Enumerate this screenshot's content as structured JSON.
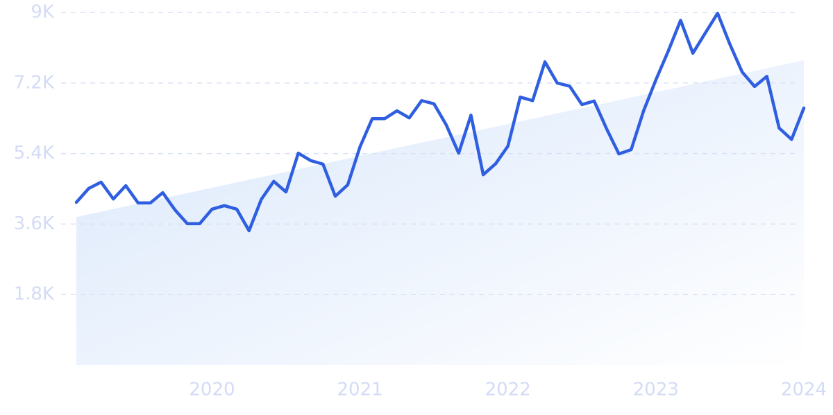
{
  "chart_data": {
    "type": "line",
    "x": [
      2019.083,
      2019.167,
      2019.25,
      2019.333,
      2019.417,
      2019.5,
      2019.583,
      2019.667,
      2019.75,
      2019.833,
      2019.917,
      2020.0,
      2020.083,
      2020.167,
      2020.25,
      2020.333,
      2020.417,
      2020.5,
      2020.583,
      2020.667,
      2020.75,
      2020.833,
      2020.917,
      2021.0,
      2021.083,
      2021.167,
      2021.25,
      2021.333,
      2021.417,
      2021.5,
      2021.583,
      2021.667,
      2021.75,
      2021.833,
      2021.917,
      2022.0,
      2022.083,
      2022.167,
      2022.25,
      2022.333,
      2022.417,
      2022.5,
      2022.583,
      2022.667,
      2022.75,
      2022.833,
      2022.917,
      2023.0,
      2023.083,
      2023.167,
      2023.25,
      2023.333,
      2023.417,
      2023.5,
      2023.583,
      2023.667,
      2023.75,
      2023.833,
      2023.917,
      2024.0
    ],
    "series": [
      {
        "color": "#2f5fe0",
        "values": [
          4155,
          4510,
          4670,
          4240,
          4580,
          4140,
          4140,
          4400,
          3960,
          3610,
          3610,
          3980,
          4070,
          3980,
          3430,
          4230,
          4690,
          4420,
          5410,
          5220,
          5130,
          4310,
          4600,
          5570,
          6290,
          6290,
          6490,
          6310,
          6750,
          6670,
          6130,
          5410,
          6380,
          4860,
          5140,
          5590,
          6840,
          6750,
          7740,
          7200,
          7120,
          6650,
          6740,
          6030,
          5390,
          5500,
          6490,
          7280,
          8010,
          8800,
          7960,
          8470,
          8980,
          8190,
          7480,
          7110,
          7370,
          6050,
          5760,
          6560
        ]
      }
    ],
    "trend": {
      "color": "#dce9fb",
      "values": [
        3780,
        7780
      ]
    },
    "xlim": [
      2019.083,
      2024.0
    ],
    "xticks": [
      2020,
      2021,
      2022,
      2023,
      2024
    ],
    "ylim": [
      0,
      9000
    ],
    "yticks": [
      {
        "value": 1800,
        "label": "1.8K"
      },
      {
        "value": 3600,
        "label": "3.6K"
      },
      {
        "value": 5400,
        "label": "5.4K"
      },
      {
        "value": 7200,
        "label": "7.2K"
      },
      {
        "value": 9000,
        "label": "9K"
      }
    ],
    "grid": true
  }
}
